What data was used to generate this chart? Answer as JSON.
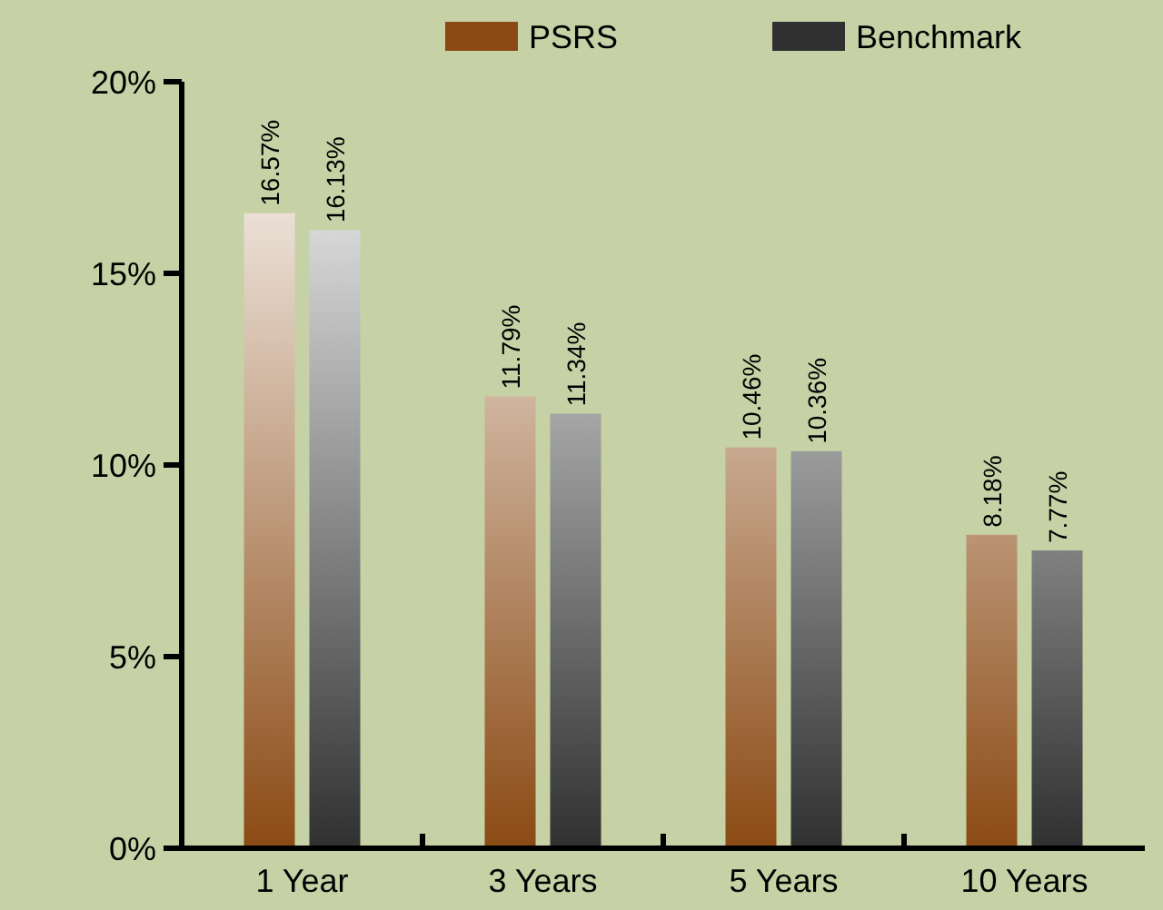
{
  "chart_data": {
    "type": "bar",
    "categories": [
      "1 Year",
      "3 Years",
      "5 Years",
      "10 Years"
    ],
    "series": [
      {
        "name": "PSRS",
        "color": "#8b4a14",
        "values": [
          16.57,
          11.79,
          10.46,
          8.18
        ],
        "value_labels": [
          "16.57%",
          "11.79%",
          "10.46%",
          "8.18%"
        ]
      },
      {
        "name": "Benchmark",
        "color": "#303030",
        "values": [
          16.13,
          11.34,
          10.36,
          7.77
        ],
        "value_labels": [
          "16.13%",
          "11.34%",
          "10.36%",
          "7.77%"
        ]
      }
    ],
    "ylim": [
      0,
      20
    ],
    "yticks": [
      {
        "value": 0,
        "label": "0%"
      },
      {
        "value": 5,
        "label": "5%"
      },
      {
        "value": 10,
        "label": "10%"
      },
      {
        "value": 15,
        "label": "15%"
      },
      {
        "value": 20,
        "label": "20%"
      }
    ],
    "legend": "top"
  }
}
